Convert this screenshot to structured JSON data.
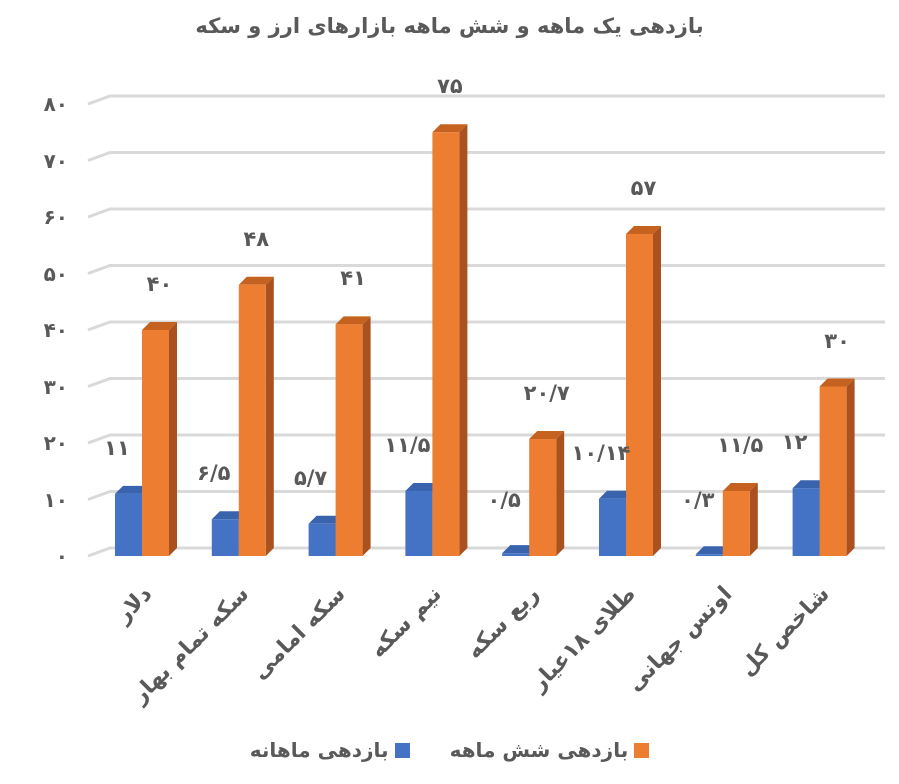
{
  "chart_data": {
    "type": "bar",
    "title": "بازدهی یک ماهه و شش ماهه بازارهای ارز و سکه",
    "xlabel": "",
    "ylabel": "",
    "ylim": [
      0,
      80
    ],
    "yticks": [
      "۰",
      "۱۰",
      "۲۰",
      "۳۰",
      "۴۰",
      "۵۰",
      "۶۰",
      "۷۰",
      "۸۰"
    ],
    "grid": true,
    "legend_position": "bottom",
    "categories": [
      "دلار",
      "سکه تمام بهار",
      "سکه امامی",
      "نیم سکه",
      "ربع سکه",
      "طلای ۱۸عیار",
      "اونس جهانی",
      "شاخص کل"
    ],
    "series": [
      {
        "name": "بازدهی ماهانه",
        "color": "#4472C4",
        "values": [
          11,
          6.5,
          5.7,
          11.5,
          0.5,
          10.14,
          0.3,
          12
        ],
        "labels": [
          "۱۱",
          "۶/۵",
          "۵/۷",
          "۱۱/۵",
          "۰/۵",
          "۱۰/۱۴",
          "۰/۳",
          "۱۲"
        ]
      },
      {
        "name": "بازدهی شش ماهه",
        "color": "#ED7D31",
        "values": [
          40,
          48,
          41,
          75,
          20.7,
          57,
          11.5,
          30
        ],
        "labels": [
          "۴۰",
          "۴۸",
          "۴۱",
          "۷۵",
          "۲۰/۷",
          "۵۷",
          "۱۱/۵",
          "۳۰"
        ]
      }
    ]
  },
  "legend": {
    "items": [
      {
        "label": "بازدهی شش ماهه",
        "color": "#ED7D31"
      },
      {
        "label": "بازدهی ماهانه",
        "color": "#4472C4"
      }
    ]
  }
}
